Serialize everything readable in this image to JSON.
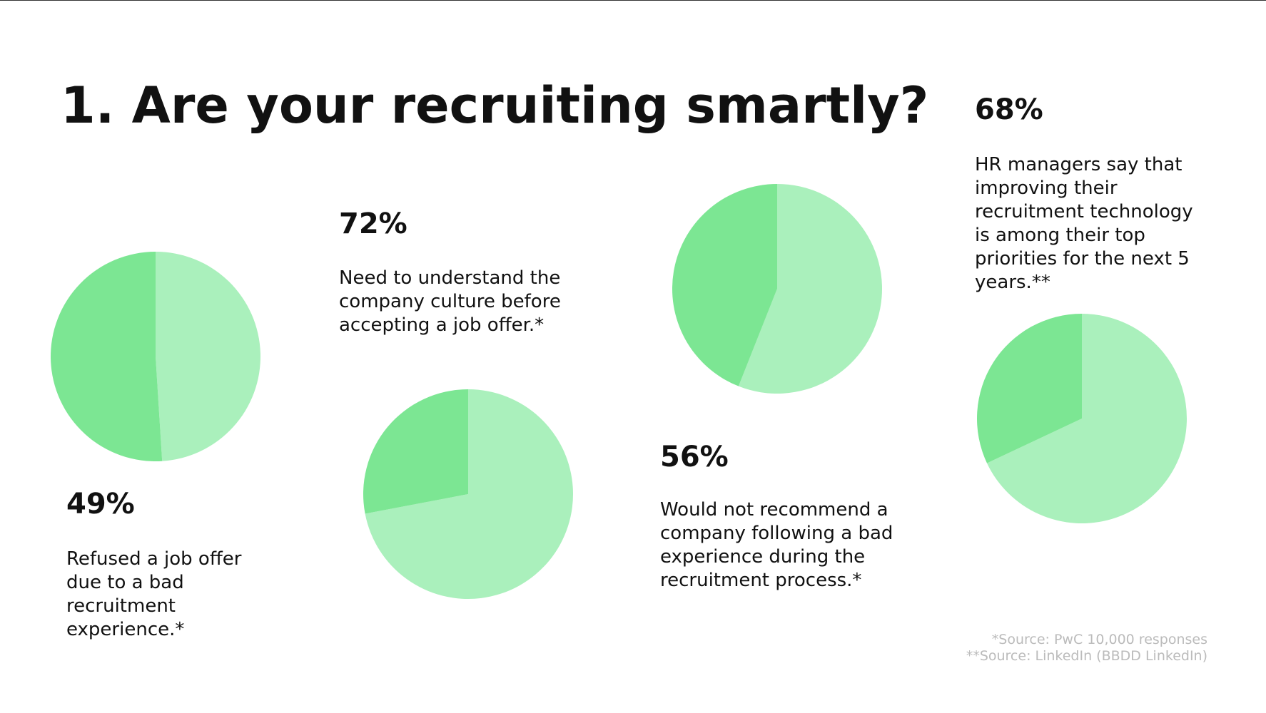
{
  "title": "1. Are your recruiting smartly?",
  "sources": [
    "*Source: PwC 10,000 responses",
    "**Source: LinkedIn (BBDD LinkedIn)"
  ],
  "chart_data": [
    {
      "type": "pie",
      "values": [
        49,
        51
      ],
      "value_labels": [
        "49%",
        null
      ],
      "colors": [
        "#aaf0bc",
        "#7ce693"
      ],
      "description": [
        "Refused a job offer",
        "due to a bad",
        "recruitment",
        "experience.*"
      ]
    },
    {
      "type": "pie",
      "values": [
        72,
        28
      ],
      "value_labels": [
        "72%",
        null
      ],
      "colors": [
        "#aaf0bc",
        "#7ce693"
      ],
      "description": [
        "Need to understand the",
        "company culture before",
        "accepting a job offer.*"
      ]
    },
    {
      "type": "pie",
      "values": [
        56,
        44
      ],
      "value_labels": [
        "56%",
        null
      ],
      "colors": [
        "#aaf0bc",
        "#7ce693"
      ],
      "description": [
        "Would not recommend a",
        "company following a bad",
        "experience during the",
        "recruitment process.*"
      ]
    },
    {
      "type": "pie",
      "values": [
        68,
        32
      ],
      "value_labels": [
        "68%",
        null
      ],
      "colors": [
        "#aaf0bc",
        "#7ce693"
      ],
      "description": [
        "HR managers say that",
        "improving their",
        "recruitment technology",
        "is among their top",
        "priorities for the next 5",
        "years.**"
      ]
    }
  ]
}
